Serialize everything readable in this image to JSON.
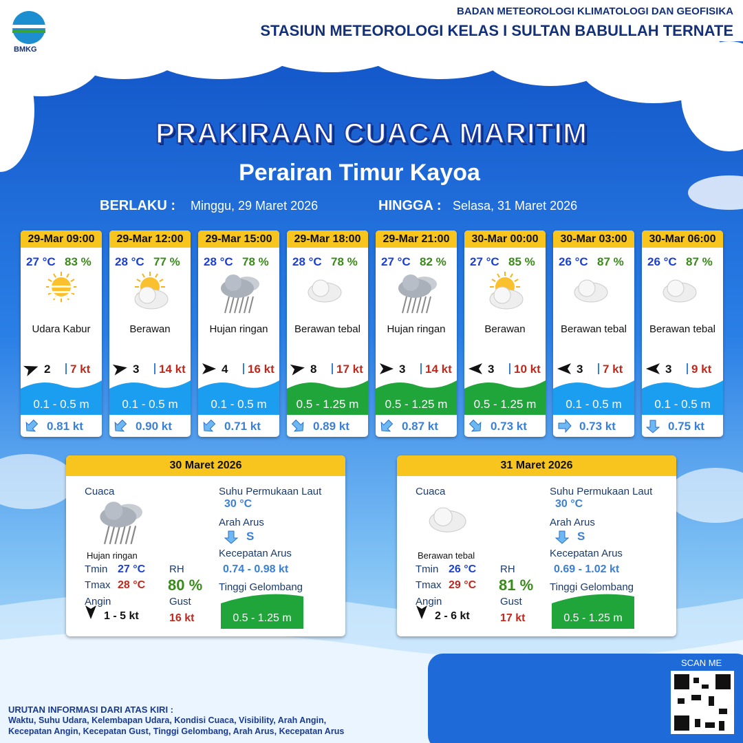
{
  "header": {
    "logo": "BMKG",
    "agency": "BADAN METEOROLOGI KLIMATOLOGI DAN GEOFISIKA",
    "station": "STASIUN METEOROLOGI KELAS I SULTAN BABULLAH TERNATE"
  },
  "title": "PRAKIRAAN CUACA MARITIM",
  "subtitle": "Perairan Timur Kayoa",
  "validity": {
    "from_label": "BERLAKU :",
    "from": "Minggu, 29 Maret 2026",
    "to_label": "HINGGA :",
    "to": "Selasa, 31 Maret 2026"
  },
  "forecasts": [
    {
      "time": "29-Mar 09:00",
      "temp": "27 °C",
      "rh": "83 %",
      "weather": "Udara Kabur",
      "wind": "2",
      "gust": "7 kt",
      "wave": "0.1 - 0.5 m",
      "current": "0.81 kt"
    },
    {
      "time": "29-Mar 12:00",
      "temp": "28 °C",
      "rh": "77 %",
      "weather": "Berawan",
      "wind": "3",
      "gust": "14 kt",
      "wave": "0.1 - 0.5 m",
      "current": "0.90 kt"
    },
    {
      "time": "29-Mar 15:00",
      "temp": "28 °C",
      "rh": "78 %",
      "weather": "Hujan ringan",
      "wind": "4",
      "gust": "16 kt",
      "wave": "0.1 - 0.5 m",
      "current": "0.71 kt"
    },
    {
      "time": "29-Mar 18:00",
      "temp": "28 °C",
      "rh": "78 %",
      "weather": "Berawan tebal",
      "wind": "8",
      "gust": "17 kt",
      "wave": "0.5 - 1.25 m",
      "current": "0.89 kt"
    },
    {
      "time": "29-Mar 21:00",
      "temp": "27 °C",
      "rh": "82 %",
      "weather": "Hujan ringan",
      "wind": "3",
      "gust": "14 kt",
      "wave": "0.5 - 1.25 m",
      "current": "0.87 kt"
    },
    {
      "time": "30-Mar 00:00",
      "temp": "27 °C",
      "rh": "85 %",
      "weather": "Berawan",
      "wind": "3",
      "gust": "10 kt",
      "wave": "0.5 - 1.25 m",
      "current": "0.73 kt"
    },
    {
      "time": "30-Mar 03:00",
      "temp": "26 °C",
      "rh": "87 %",
      "weather": "Berawan tebal",
      "wind": "3",
      "gust": "7 kt",
      "wave": "0.1 - 0.5 m",
      "current": "0.73 kt"
    },
    {
      "time": "30-Mar 06:00",
      "temp": "26 °C",
      "rh": "87 %",
      "weather": "Berawan tebal",
      "wind": "3",
      "gust": "9 kt",
      "wave": "0.1 - 0.5 m",
      "current": "0.75 kt"
    }
  ],
  "summary_labels": {
    "weather": "Cuaca",
    "tmin": "Tmin",
    "tmax": "Tmax",
    "wind": "Angin",
    "rh": "RH",
    "gust": "Gust",
    "sst": "Suhu Permukaan Laut",
    "current_dir": "Arah Arus",
    "current_speed": "Kecepatan Arus",
    "wave": "Tinggi Gelombang"
  },
  "summaries": [
    {
      "date": "30 Maret 2026",
      "weather": "Hujan ringan",
      "tmin": "27 °C",
      "tmax": "28 °C",
      "wind": "1 - 5 kt",
      "rh": "80 %",
      "gust": "16 kt",
      "sst": "30 °C",
      "current_dir": "S",
      "current_speed": "0.74 - 0.98 kt",
      "wave": "0.5 - 1.25 m"
    },
    {
      "date": "31 Maret 2026",
      "weather": "Berawan tebal",
      "tmin": "26 °C",
      "tmax": "29 °C",
      "wind": "2 - 6 kt",
      "rh": "81 %",
      "gust": "17 kt",
      "sst": "30 °C",
      "current_dir": "S",
      "current_speed": "0.69 - 1.02 kt",
      "wave": "0.5 - 1.25 m"
    }
  ],
  "footer": {
    "scan": "SCAN ME",
    "note_title": "URUTAN INFORMASI DARI ATAS KIRI :",
    "note_lines": [
      "Waktu, Suhu Udara, Kelembapan Udara, Kondisi Cuaca, Visibility, Arah Angin,",
      "Kecepatan Angin, Kecepatan Gust, Tinggi Gelombang, Arah Arus, Kecepatan Arus"
    ]
  }
}
